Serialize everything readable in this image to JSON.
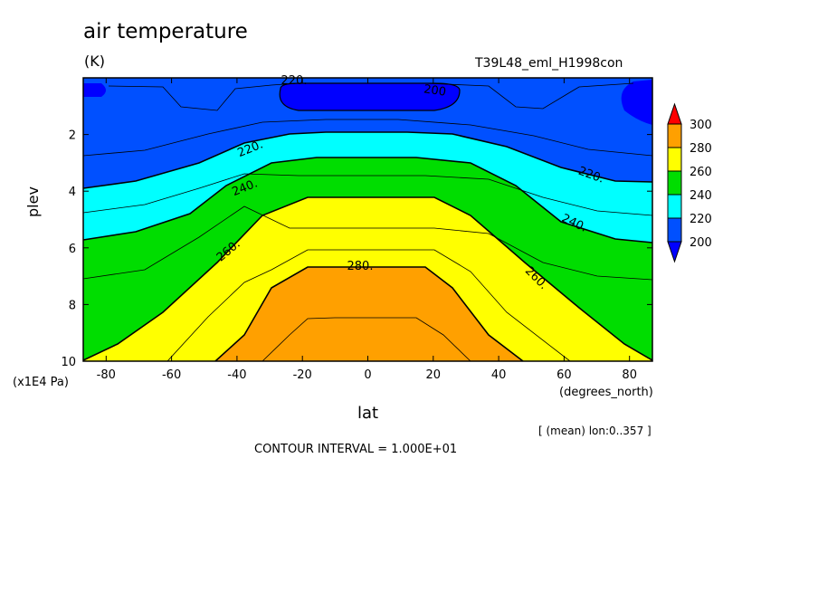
{
  "header": {
    "title": "air temperature",
    "units": "(K)",
    "run_id": "T39L48_eml_H1998con"
  },
  "axes": {
    "x_label": "lat",
    "x_units": "(degrees_north)",
    "y_label": "plev",
    "y_units": "(x1E4 Pa)"
  },
  "footer": {
    "mean_note": "[ (mean) lon:0..357 ]",
    "contour_interval": "CONTOUR INTERVAL = 1.000E+01"
  },
  "colors": {
    "c_lt200": "#0000ff",
    "c_200": "#0050ff",
    "c_220": "#00ffff",
    "c_240": "#00dd00",
    "c_260": "#ffff00",
    "c_280": "#ffa000",
    "c_gt300": "#ff0000"
  },
  "chart_data": {
    "type": "contour",
    "variable": "air temperature",
    "units": "K",
    "x": {
      "label": "lat",
      "units": "degrees_north",
      "range": [
        -87,
        87
      ],
      "ticks": [
        -80,
        -60,
        -40,
        -20,
        0,
        20,
        40,
        60,
        80
      ]
    },
    "y": {
      "label": "plev",
      "units": "x1E4 Pa",
      "range": [
        0,
        10
      ],
      "inverted": true,
      "ticks": [
        2,
        4,
        6,
        8,
        10
      ]
    },
    "contour_interval": 10,
    "contour_labels": [
      "200",
      "220.",
      "240.",
      "260.",
      "280."
    ],
    "colorbar": {
      "levels": [
        200,
        220,
        240,
        260,
        280,
        300
      ],
      "labels": [
        "200",
        "220",
        "240",
        "260",
        "280",
        "300"
      ]
    }
  }
}
